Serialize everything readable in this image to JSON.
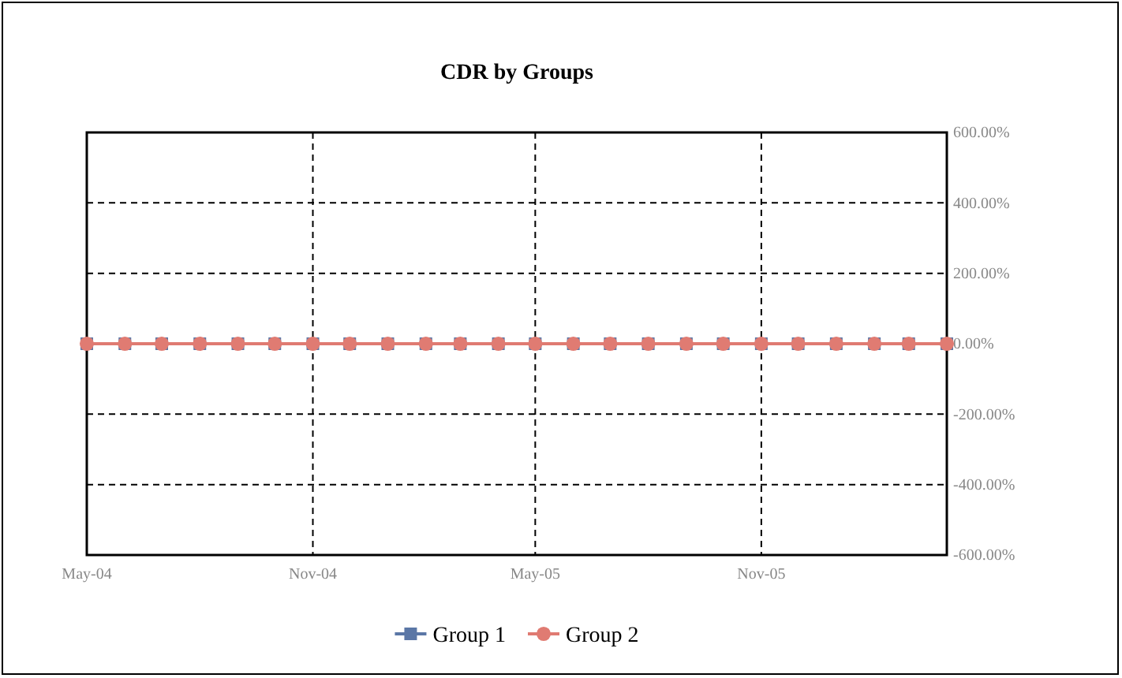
{
  "chart_data": {
    "type": "line",
    "title": "CDR by Groups",
    "x": [
      "2004-05",
      "2004-06",
      "2004-07",
      "2004-08",
      "2004-09",
      "2004-10",
      "2004-11",
      "2004-12",
      "2005-01",
      "2005-02",
      "2005-03",
      "2005-04",
      "2005-05",
      "2005-06",
      "2005-07",
      "2005-08",
      "2005-09",
      "2005-10",
      "2005-11",
      "2005-12",
      "2006-01",
      "2006-02",
      "2006-03",
      "2006-04"
    ],
    "series": [
      {
        "name": "Group 1",
        "color": "#5b77a6",
        "marker": "square",
        "values": [
          0,
          0,
          0,
          0,
          0,
          0,
          0,
          0,
          0,
          0,
          0,
          0,
          0,
          0,
          0,
          0,
          0,
          0,
          0,
          0,
          0,
          0,
          0,
          0
        ]
      },
      {
        "name": "Group 2",
        "color": "#e07b72",
        "marker": "circle",
        "values": [
          0,
          0,
          0,
          0,
          0,
          0,
          0,
          0,
          0,
          0,
          0,
          0,
          0,
          0,
          0,
          0,
          0,
          0,
          0,
          0,
          0,
          0,
          0,
          0
        ]
      }
    ],
    "xlim": [
      "2004-05",
      "2006-04"
    ],
    "xticks": [
      {
        "value": "2004-05",
        "label": "May-04"
      },
      {
        "value": "2004-11",
        "label": "Nov-04"
      },
      {
        "value": "2005-05",
        "label": "May-05"
      },
      {
        "value": "2005-11",
        "label": "Nov-05"
      }
    ],
    "ylim": [
      -600,
      600
    ],
    "yticks": [
      {
        "value": -600,
        "label": "-600.00%"
      },
      {
        "value": -400,
        "label": "-400.00%"
      },
      {
        "value": -200,
        "label": "-200.00%"
      },
      {
        "value": 0,
        "label": "0.00%"
      },
      {
        "value": 200,
        "label": "200.00%"
      },
      {
        "value": 400,
        "label": "400.00%"
      },
      {
        "value": 600,
        "label": "600.00%"
      }
    ],
    "grid": true,
    "legend": "bottom",
    "line_style": "solid"
  }
}
